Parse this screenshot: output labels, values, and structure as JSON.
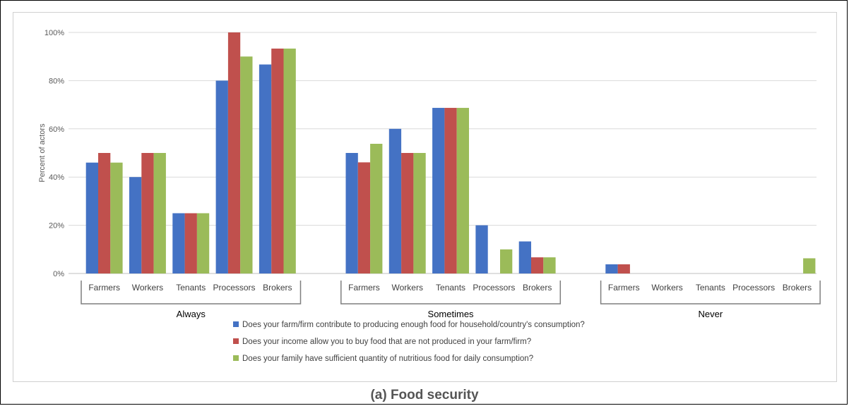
{
  "caption": "(a) Food security",
  "chart_data": {
    "type": "bar",
    "ylabel": "Percent of actors",
    "ylim": [
      0,
      100
    ],
    "ytick_labels": [
      "0%",
      "20%",
      "40%",
      "60%",
      "80%",
      "100%"
    ],
    "grid": true,
    "legend_position": "bottom",
    "groups": [
      "Always",
      "Sometimes",
      "Never"
    ],
    "categories": [
      "Farmers",
      "Workers",
      "Tenants",
      "Processors",
      "Brokers"
    ],
    "series": [
      {
        "name": "Does your farm/firm contribute to producing enough food for household/country's consumption?",
        "color": "#4472C4",
        "values": [
          [
            46,
            40,
            25,
            80,
            86.7
          ],
          [
            50,
            60,
            68.7,
            20,
            13.3
          ],
          [
            3.8,
            0,
            0,
            0,
            0
          ]
        ]
      },
      {
        "name": "Does your income allow you to buy food that are not produced in your farm/firm?",
        "color": "#C0504D",
        "values": [
          [
            50,
            50,
            25,
            100,
            93.3
          ],
          [
            46.1,
            50,
            68.7,
            0,
            6.7
          ],
          [
            3.8,
            0,
            0,
            0,
            0
          ]
        ]
      },
      {
        "name": "Does your family have sufficient quantity of nutritious food for daily consumption?",
        "color": "#9BBB59",
        "values": [
          [
            46,
            50,
            25,
            90,
            93.3
          ],
          [
            53.8,
            50,
            68.7,
            10,
            6.7
          ],
          [
            0,
            0,
            0,
            0,
            6.3
          ]
        ]
      }
    ]
  }
}
